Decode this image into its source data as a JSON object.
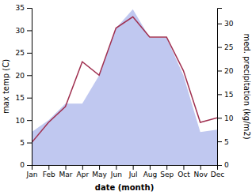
{
  "chart_data": {
    "type": "line",
    "xlabel": "date (month)",
    "ylabel": "max temp (C)",
    "y2label": "med. precipitation (kg/m2)",
    "categories": [
      "Jan",
      "Feb",
      "Mar",
      "Apr",
      "May",
      "Jun",
      "Jul",
      "Aug",
      "Sep",
      "Oct",
      "Nov",
      "Dec"
    ],
    "series": [
      {
        "type": "area",
        "axis": "y2",
        "color": "#c0c8f0",
        "values": [
          7,
          9.5,
          13,
          13,
          19,
          29,
          33,
          27,
          27,
          19,
          7,
          7.5
        ]
      },
      {
        "type": "line",
        "color": "#a03050",
        "values": [
          5,
          9.5,
          13,
          23,
          20,
          30.5,
          33,
          28.5,
          28.5,
          21,
          9.5,
          10.5
        ]
      }
    ],
    "ylim": [
      0,
      35
    ],
    "yticks": [
      0,
      5,
      10,
      15,
      20,
      25,
      30,
      35
    ],
    "y2lim": [
      0,
      33.3
    ],
    "y2ticks": [
      0,
      5,
      10,
      15,
      20,
      25,
      30
    ],
    "grid": false
  }
}
